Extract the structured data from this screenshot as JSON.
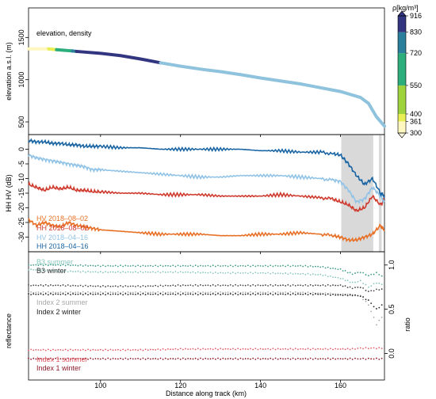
{
  "chart_data": [
    {
      "type": "line",
      "panel": "elevation",
      "annotation": "elevation, density",
      "xlabel": "Distance along track (km)",
      "ylabel": "elevation a.s.l. (m)",
      "xlim": [
        82,
        171
      ],
      "ylim": [
        350,
        1850
      ],
      "xticks": [
        "100",
        "120",
        "140",
        "160"
      ],
      "yticks": [
        "500",
        "1000",
        "1500"
      ],
      "colorbar": {
        "title": "ρ[kg/m³]",
        "ticks": [
          "916",
          "830",
          "720",
          "550",
          "400",
          "361",
          "300"
        ],
        "bands": [
          {
            "from": 300,
            "to": 361,
            "color": "#fff7c0"
          },
          {
            "from": 361,
            "to": 400,
            "color": "#e8ef55"
          },
          {
            "from": 400,
            "to": 550,
            "color": "#9fd33e"
          },
          {
            "from": 550,
            "to": 720,
            "color": "#2bad7c"
          },
          {
            "from": 720,
            "to": 830,
            "color": "#2a7f9c"
          },
          {
            "from": 830,
            "to": 916,
            "color": "#32357f"
          }
        ],
        "extend": "both"
      },
      "series": [
        {
          "segment": "firn",
          "color": "#fff7c0",
          "x": [
            82,
            87
          ],
          "y": [
            1365,
            1365
          ]
        },
        {
          "segment": "firn",
          "color": "#e8ef55",
          "x": [
            87,
            89
          ],
          "y": [
            1365,
            1355
          ]
        },
        {
          "segment": "firn",
          "color": "#2bad7c",
          "x": [
            89,
            93
          ],
          "y": [
            1355,
            1340
          ]
        },
        {
          "segment": "firn",
          "color": "#2a7f9c",
          "x": [
            93,
            94
          ],
          "y": [
            1340,
            1335
          ]
        },
        {
          "segment": "ice",
          "color": "#32357f",
          "x": [
            94,
            100,
            105,
            110,
            115
          ],
          "y": [
            1335,
            1312,
            1285,
            1245,
            1200
          ]
        },
        {
          "segment": "bare ice",
          "color": "#8fc3dd",
          "x": [
            115,
            120,
            125,
            130,
            135,
            140,
            145,
            150,
            155,
            160,
            165,
            167,
            169,
            171
          ],
          "y": [
            1200,
            1160,
            1125,
            1095,
            1060,
            1020,
            985,
            950,
            905,
            860,
            790,
            720,
            560,
            450
          ]
        }
      ]
    },
    {
      "type": "line",
      "panel": "backscatter",
      "ylabel": "HH HV (dB)",
      "xlim": [
        82,
        171
      ],
      "ylim": [
        -35,
        5
      ],
      "yticks": [
        "0",
        "-5",
        "-10",
        "-15",
        "-20",
        "-25",
        "-30"
      ],
      "shaded_x": [
        [
          160.2,
          168.2
        ],
        [
          169.6,
          170.3
        ]
      ],
      "legend_position": "lower-left",
      "series": [
        {
          "name": "HV 2018–08–02",
          "color": "#e87026",
          "x": [
            82,
            84,
            86,
            88,
            90,
            92,
            94,
            96,
            98,
            100,
            105,
            110,
            115,
            120,
            125,
            130,
            135,
            140,
            145,
            150,
            155,
            158,
            160,
            162,
            164,
            166,
            168,
            170,
            171
          ],
          "y": [
            -24,
            -26,
            -25,
            -26,
            -26.5,
            -25,
            -26,
            -26.5,
            -27,
            -27.5,
            -28,
            -28.5,
            -29,
            -29,
            -29,
            -29.5,
            -29.5,
            -29,
            -29,
            -28.5,
            -29,
            -29.5,
            -30,
            -31,
            -31,
            -30,
            -29,
            -26,
            -28
          ]
        },
        {
          "name": "HH 2018–08–02",
          "color": "#cf3b2e",
          "x": [
            82,
            84,
            86,
            88,
            90,
            92,
            94,
            96,
            98,
            100,
            105,
            110,
            115,
            120,
            125,
            130,
            135,
            140,
            145,
            150,
            155,
            158,
            160,
            162,
            164,
            166,
            168,
            170,
            171
          ],
          "y": [
            -12,
            -13,
            -14,
            -13,
            -13.5,
            -13,
            -14,
            -14,
            -14.5,
            -14.5,
            -15,
            -15,
            -15.5,
            -15.5,
            -15.5,
            -16,
            -16,
            -16,
            -15.5,
            -16,
            -16.5,
            -17,
            -18,
            -19,
            -21,
            -20,
            -16,
            -19,
            -17
          ]
        },
        {
          "name": "HV 2018–04–16",
          "color": "#91c3e6",
          "x": [
            82,
            84,
            86,
            88,
            90,
            92,
            94,
            96,
            98,
            100,
            105,
            110,
            115,
            120,
            125,
            130,
            135,
            140,
            145,
            150,
            155,
            158,
            160,
            162,
            164,
            166,
            168,
            170,
            171
          ],
          "y": [
            -2,
            -3,
            -3.5,
            -4,
            -4.5,
            -5,
            -5.5,
            -6,
            -7,
            -7,
            -7.5,
            -8,
            -8.5,
            -9,
            -9.5,
            -9.5,
            -9,
            -9,
            -9,
            -9.5,
            -10,
            -10.5,
            -11,
            -14,
            -18,
            -17,
            -13,
            -16,
            -18
          ]
        },
        {
          "name": "HH 2018–04–16",
          "color": "#1a65a3",
          "x": [
            82,
            84,
            86,
            88,
            90,
            92,
            94,
            96,
            98,
            100,
            105,
            110,
            115,
            120,
            125,
            130,
            135,
            140,
            145,
            150,
            155,
            158,
            160,
            162,
            164,
            166,
            168,
            170,
            171
          ],
          "y": [
            3,
            2.5,
            2.5,
            2,
            2,
            1.5,
            1.5,
            1,
            1,
            1,
            0.5,
            0.5,
            0,
            0,
            0,
            0,
            0,
            -0.5,
            -0.5,
            -1,
            -1,
            -1.5,
            -2,
            -5,
            -9,
            -12,
            -10,
            -15,
            -16
          ]
        }
      ]
    },
    {
      "type": "scatter",
      "panel": "reflectance",
      "ylabel": "reflectance",
      "y2label": "ratio",
      "xlim": [
        82,
        171
      ],
      "ylim": [
        -0.3,
        1.15
      ],
      "y2ticks": [
        "0.0",
        "0.5",
        "1.0"
      ],
      "series": [
        {
          "name": "B3 summer",
          "color": "#3e9a86",
          "x": [
            82,
            90,
            100,
            110,
            120,
            130,
            140,
            150,
            155,
            160,
            163,
            165,
            167,
            169,
            171
          ],
          "y": [
            1.0,
            1.0,
            0.99,
            0.99,
            0.99,
            0.99,
            0.99,
            0.99,
            0.98,
            0.95,
            0.9,
            0.92,
            0.88,
            0.91,
            0.86
          ]
        },
        {
          "name": "B3 summer",
          "color": "#86c6bc",
          "x": [
            82,
            90,
            100,
            110,
            120,
            130,
            140,
            150,
            155,
            160,
            163,
            165,
            167,
            169,
            171
          ],
          "y": [
            0.95,
            0.93,
            0.92,
            0.92,
            0.92,
            0.91,
            0.91,
            0.9,
            0.89,
            0.85,
            0.8,
            0.82,
            0.75,
            0.8,
            0.77
          ]
        },
        {
          "name": "B3 winter",
          "color": "#444444",
          "x": [
            82,
            90,
            100,
            110,
            120,
            130,
            140,
            150,
            155,
            160,
            163,
            165,
            167,
            169,
            171
          ],
          "y": [
            0.77,
            0.77,
            0.76,
            0.76,
            0.77,
            0.77,
            0.77,
            0.77,
            0.77,
            0.77,
            0.74,
            0.75,
            0.7,
            0.72,
            0.73
          ]
        },
        {
          "name": "Index 2 summer",
          "color": "#a8a8a8",
          "x": [
            82,
            90,
            100,
            110,
            120,
            130,
            140,
            150,
            155,
            160,
            163,
            165,
            167,
            169,
            171
          ],
          "y": [
            0.69,
            0.69,
            0.69,
            0.69,
            0.69,
            0.69,
            0.69,
            0.69,
            0.68,
            0.67,
            0.66,
            0.65,
            0.55,
            0.33,
            0.45
          ]
        },
        {
          "name": "Index 2 winter",
          "color": "#222222",
          "x": [
            82,
            90,
            100,
            110,
            120,
            130,
            140,
            150,
            155,
            160,
            163,
            165,
            167,
            169,
            171
          ],
          "y": [
            0.67,
            0.67,
            0.67,
            0.67,
            0.67,
            0.67,
            0.67,
            0.67,
            0.67,
            0.66,
            0.66,
            0.65,
            0.6,
            0.5,
            0.57
          ]
        },
        {
          "name": "Index 1 summer",
          "color": "#e05a64",
          "x": [
            82,
            90,
            100,
            110,
            120,
            130,
            140,
            150,
            155,
            160,
            163,
            165,
            167,
            169,
            171
          ],
          "y": [
            0.04,
            0.04,
            0.04,
            0.04,
            0.05,
            0.05,
            0.05,
            0.05,
            0.05,
            0.05,
            0.05,
            0.06,
            0.06,
            0.06,
            0.06
          ]
        },
        {
          "name": "Index 1 winter",
          "color": "#8c1a2a",
          "x": [
            82,
            90,
            100,
            110,
            120,
            130,
            140,
            150,
            155,
            160,
            163,
            165,
            167,
            169,
            171
          ],
          "y": [
            -0.06,
            -0.06,
            -0.06,
            -0.06,
            -0.06,
            -0.06,
            -0.06,
            -0.06,
            -0.06,
            -0.06,
            -0.06,
            -0.06,
            -0.06,
            -0.06,
            -0.06
          ]
        }
      ]
    }
  ]
}
